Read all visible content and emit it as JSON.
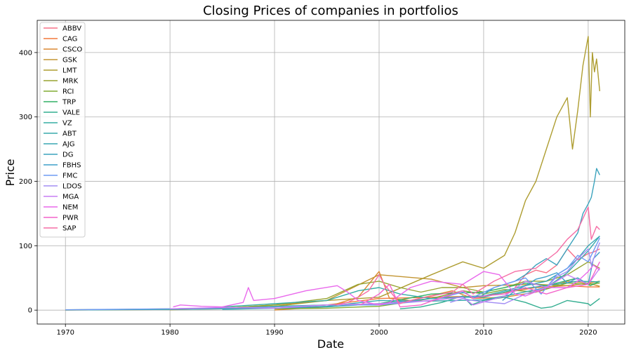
{
  "chart_data": {
    "type": "line",
    "title": "Closing Prices of companies in portfolios",
    "xlabel": "Date",
    "ylabel": "Price",
    "xlim": [
      1967.3,
      2023.5
    ],
    "ylim": [
      -21.6,
      450
    ],
    "xticks": [
      1970,
      1980,
      1990,
      2000,
      2010,
      2020
    ],
    "yticks": [
      0,
      100,
      200,
      300,
      400
    ],
    "grid": true,
    "legend_position": "top-left",
    "series": [
      {
        "name": "ABBV",
        "color": "#f77189",
        "x": [
          2013,
          2014,
          2015,
          2016,
          2017,
          2018,
          2019,
          2020,
          2020.5,
          2021.1
        ],
        "y": [
          35,
          55,
          62,
          58,
          70,
          95,
          78,
          88,
          90,
          95
        ]
      },
      {
        "name": "CAG",
        "color": "#f3783b",
        "x": [
          1970,
          1975,
          1980,
          1985,
          1990,
          1995,
          2000,
          2005,
          2010,
          2015,
          2018,
          2020,
          2021.1
        ],
        "y": [
          0.3,
          0.6,
          1,
          2,
          5,
          8,
          18,
          20,
          22,
          35,
          38,
          36,
          36
        ]
      },
      {
        "name": "CSCO",
        "color": "#dc8932",
        "x": [
          1990,
          1995,
          1998,
          2000,
          2001,
          2003,
          2007,
          2009,
          2012,
          2015,
          2018,
          2020,
          2021.1
        ],
        "y": [
          0.1,
          5,
          20,
          60,
          18,
          15,
          30,
          18,
          20,
          28,
          45,
          42,
          45
        ]
      },
      {
        "name": "GSK",
        "color": "#c39532",
        "x": [
          1980,
          1985,
          1990,
          1995,
          2000,
          2005,
          2008,
          2010,
          2015,
          2018,
          2020,
          2021.1
        ],
        "y": [
          0.5,
          3,
          8,
          15,
          55,
          48,
          35,
          38,
          40,
          38,
          42,
          37
        ]
      },
      {
        "name": "LMT",
        "color": "#ae9d31",
        "x": [
          1970,
          1980,
          1990,
          1995,
          2000,
          2005,
          2008,
          2010,
          2012,
          2013,
          2014,
          2015,
          2016,
          2017,
          2018,
          2018.5,
          2019,
          2019.5,
          2020,
          2020.2,
          2020.4,
          2020.6,
          2020.8,
          2021.1
        ],
        "y": [
          0.2,
          1,
          6,
          15,
          20,
          55,
          75,
          65,
          85,
          120,
          170,
          200,
          250,
          300,
          330,
          250,
          310,
          380,
          425,
          300,
          400,
          370,
          390,
          340
        ]
      },
      {
        "name": "MRK",
        "color": "#97a431",
        "x": [
          1970,
          1975,
          1980,
          1985,
          1990,
          1995,
          1998,
          2000,
          2002,
          2004,
          2006,
          2008,
          2010,
          2012,
          2014,
          2016,
          2018,
          2020,
          2021.1
        ],
        "y": [
          0.5,
          1,
          2,
          3,
          8,
          18,
          40,
          45,
          35,
          28,
          35,
          35,
          28,
          35,
          45,
          45,
          55,
          75,
          65
        ]
      },
      {
        "name": "RCI",
        "color": "#80ab32",
        "x": [
          1990,
          1995,
          2000,
          2005,
          2008,
          2010,
          2012,
          2015,
          2018,
          2020,
          2021.1
        ],
        "y": [
          2,
          3,
          6,
          18,
          30,
          25,
          32,
          28,
          42,
          40,
          42
        ]
      },
      {
        "name": "TRP",
        "color": "#32b166",
        "x": [
          1986,
          1990,
          1995,
          2000,
          2005,
          2010,
          2014,
          2016,
          2019,
          2020.2,
          2021.1
        ],
        "y": [
          3,
          6,
          8,
          10,
          25,
          28,
          42,
          38,
          50,
          38,
          45
        ]
      },
      {
        "name": "VALE",
        "color": "#34ae91",
        "x": [
          2002,
          2004,
          2006,
          2008,
          2008.8,
          2010,
          2012,
          2014,
          2015.5,
          2016.5,
          2018,
          2020,
          2020.2,
          2021.1
        ],
        "y": [
          2,
          5,
          12,
          22,
          8,
          15,
          20,
          12,
          3,
          5,
          15,
          10,
          7,
          18
        ]
      },
      {
        "name": "VZ",
        "color": "#36ada4",
        "x": [
          1985,
          1990,
          1995,
          1998,
          2000,
          2002,
          2005,
          2008,
          2010,
          2013,
          2016,
          2019,
          2021.1
        ],
        "y": [
          5,
          10,
          15,
          30,
          35,
          25,
          18,
          20,
          20,
          32,
          38,
          45,
          44
        ]
      },
      {
        "name": "ABT",
        "color": "#38aaac",
        "x": [
          1970,
          1980,
          1990,
          1995,
          2000,
          2005,
          2010,
          2013,
          2016,
          2018,
          2019,
          2020,
          2021.1
        ],
        "y": [
          0.3,
          1,
          3,
          6,
          15,
          14,
          16,
          25,
          35,
          58,
          75,
          92,
          115
        ]
      },
      {
        "name": "AJG",
        "color": "#39a7b4",
        "x": [
          1985,
          1990,
          1995,
          2000,
          2005,
          2010,
          2014,
          2016,
          2018,
          2019,
          2020,
          2021.1
        ],
        "y": [
          1,
          3,
          5,
          10,
          18,
          22,
          38,
          45,
          65,
          80,
          100,
          115
        ]
      },
      {
        "name": "DG",
        "color": "#3ba3bd",
        "x": [
          2009.8,
          2011,
          2012,
          2013,
          2014,
          2015,
          2016,
          2017,
          2018,
          2019,
          2019.5,
          2020,
          2020.3,
          2020.6,
          2020.8,
          2021.1
        ],
        "y": [
          22,
          35,
          40,
          45,
          55,
          70,
          80,
          70,
          95,
          120,
          150,
          165,
          175,
          200,
          220,
          210
        ]
      },
      {
        "name": "FBHS",
        "color": "#3ea0ca",
        "x": [
          2011.8,
          2013,
          2014,
          2015,
          2016,
          2017,
          2018,
          2019,
          2020,
          2020.5,
          2021.1
        ],
        "y": [
          15,
          30,
          38,
          48,
          52,
          58,
          42,
          50,
          40,
          80,
          90
        ]
      },
      {
        "name": "FMC",
        "color": "#6e9bf4",
        "x": [
          1970,
          1980,
          1990,
          1995,
          2000,
          2005,
          2008,
          2009,
          2011,
          2014,
          2015.5,
          2017,
          2018,
          2019,
          2020,
          2021.1
        ],
        "y": [
          0.5,
          2,
          5,
          8,
          8,
          15,
          28,
          20,
          35,
          50,
          25,
          55,
          65,
          85,
          75,
          112
        ]
      },
      {
        "name": "LDOS",
        "color": "#a38ef4",
        "x": [
          2006.8,
          2008,
          2009,
          2010,
          2012,
          2014,
          2016,
          2017,
          2018,
          2019,
          2020,
          2020.3,
          2021.1
        ],
        "y": [
          12,
          18,
          15,
          13,
          10,
          25,
          35,
          52,
          60,
          80,
          95,
          70,
          105
        ]
      },
      {
        "name": "MGA",
        "color": "#c77ff4",
        "x": [
          1980,
          1985,
          1990,
          1995,
          2000,
          2005,
          2008,
          2009,
          2012,
          2014,
          2016,
          2018,
          2020,
          2021.1
        ],
        "y": [
          2,
          4,
          3,
          8,
          10,
          15,
          20,
          8,
          22,
          45,
          35,
          55,
          40,
          65
        ]
      },
      {
        "name": "NEM",
        "color": "#e969ec",
        "x": [
          1980.3,
          1981,
          1983,
          1985,
          1987,
          1987.5,
          1988,
          1990,
          1993,
          1996,
          1997,
          1998,
          2000,
          2001,
          2003,
          2005,
          2008,
          2010,
          2011.5,
          2013,
          2014,
          2016,
          2018,
          2019,
          2020,
          2020.5,
          2021.1
        ],
        "y": [
          5,
          8,
          6,
          5,
          12,
          35,
          15,
          18,
          30,
          38,
          28,
          15,
          8,
          12,
          35,
          45,
          40,
          60,
          55,
          25,
          22,
          35,
          35,
          45,
          60,
          70,
          62
        ]
      },
      {
        "name": "PWR",
        "color": "#f464ca",
        "x": [
          1998.2,
          2000,
          2001,
          2002,
          2004,
          2006,
          2008,
          2009,
          2010,
          2012,
          2014,
          2016,
          2018,
          2020,
          2020.5,
          2021.1
        ],
        "y": [
          8,
          25,
          40,
          5,
          8,
          20,
          30,
          18,
          22,
          25,
          35,
          25,
          35,
          40,
          55,
          75
        ]
      },
      {
        "name": "SAP",
        "color": "#f56ea6",
        "x": [
          1995.8,
          1997,
          1998,
          1999,
          2000,
          2000.5,
          2001,
          2002,
          2003,
          2005,
          2007,
          2008,
          2009,
          2011,
          2013,
          2015,
          2017,
          2018,
          2019,
          2020,
          2020.3,
          2020.8,
          2021.1
        ],
        "y": [
          8,
          12,
          20,
          30,
          55,
          40,
          30,
          10,
          15,
          22,
          28,
          40,
          25,
          45,
          60,
          65,
          90,
          110,
          125,
          160,
          110,
          130,
          125
        ]
      }
    ]
  }
}
